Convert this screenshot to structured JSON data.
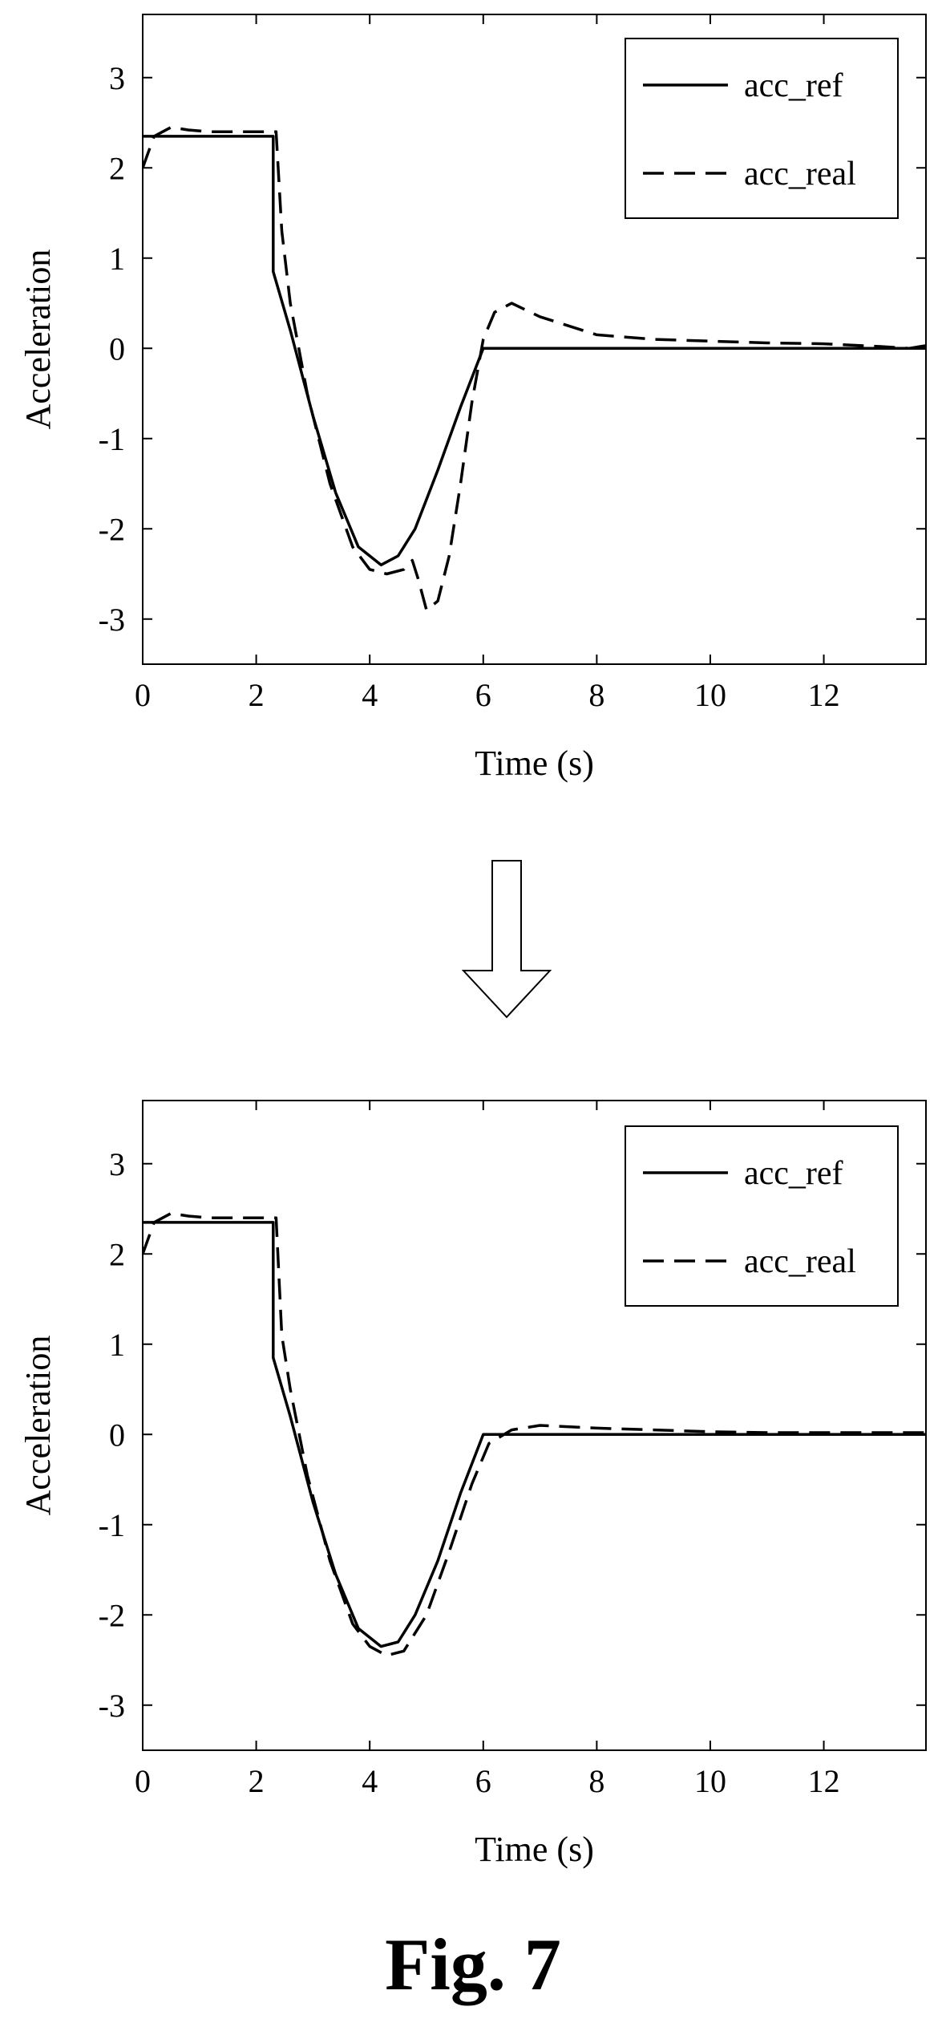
{
  "figure": {
    "caption": "Fig. 7",
    "arrow_direction": "down"
  },
  "chart_data": [
    {
      "type": "line",
      "title": "",
      "xlabel": "Time (s)",
      "ylabel": "Acceleration",
      "xlim": [
        0,
        13.8
      ],
      "ylim": [
        -3.5,
        3.7
      ],
      "xticks": [
        0,
        2,
        4,
        6,
        8,
        10,
        12
      ],
      "yticks": [
        3,
        2,
        1,
        0,
        -1,
        -2,
        -3
      ],
      "grid": false,
      "legend": "top-right",
      "series": [
        {
          "name": "acc_ref",
          "style": "solid",
          "x": [
            0,
            2.3,
            2.3,
            2.6,
            3.0,
            3.4,
            3.8,
            4.2,
            4.5,
            4.8,
            5.2,
            5.6,
            6.0,
            13.8
          ],
          "y": [
            2.35,
            2.35,
            0.85,
            0.2,
            -0.75,
            -1.6,
            -2.2,
            -2.4,
            -2.3,
            -2.0,
            -1.35,
            -0.65,
            0.0,
            0.0
          ]
        },
        {
          "name": "acc_real",
          "style": "dashed",
          "x": [
            0,
            0.2,
            0.5,
            0.8,
            1.2,
            2.35,
            2.45,
            2.6,
            2.9,
            3.3,
            3.7,
            4.0,
            4.3,
            4.6,
            4.75,
            4.85,
            5.0,
            5.2,
            5.4,
            5.6,
            5.8,
            6.0,
            6.2,
            6.5,
            7.0,
            8.0,
            9.0,
            10.0,
            11.0,
            12.0,
            13.0,
            13.5,
            13.8
          ],
          "y": [
            2.0,
            2.35,
            2.45,
            2.42,
            2.4,
            2.4,
            1.3,
            0.5,
            -0.5,
            -1.5,
            -2.2,
            -2.45,
            -2.5,
            -2.45,
            -2.35,
            -2.55,
            -2.9,
            -2.8,
            -2.3,
            -1.5,
            -0.6,
            0.1,
            0.4,
            0.5,
            0.35,
            0.15,
            0.1,
            0.08,
            0.06,
            0.05,
            0.02,
            0.0,
            0.03
          ]
        }
      ]
    },
    {
      "type": "line",
      "title": "",
      "xlabel": "Time (s)",
      "ylabel": "Acceleration",
      "xlim": [
        0,
        13.8
      ],
      "ylim": [
        -3.5,
        3.7
      ],
      "xticks": [
        0,
        2,
        4,
        6,
        8,
        10,
        12
      ],
      "yticks": [
        3,
        2,
        1,
        0,
        -1,
        -2,
        -3
      ],
      "grid": false,
      "legend": "top-right",
      "series": [
        {
          "name": "acc_ref",
          "style": "solid",
          "x": [
            0,
            2.3,
            2.3,
            2.6,
            3.0,
            3.4,
            3.8,
            4.2,
            4.5,
            4.8,
            5.2,
            5.6,
            6.0,
            13.8
          ],
          "y": [
            2.35,
            2.35,
            0.85,
            0.2,
            -0.75,
            -1.55,
            -2.15,
            -2.35,
            -2.3,
            -2.0,
            -1.4,
            -0.65,
            0.0,
            0.0
          ]
        },
        {
          "name": "acc_real",
          "style": "dashed",
          "x": [
            0,
            0.2,
            0.5,
            0.8,
            1.2,
            2.35,
            2.45,
            2.6,
            2.9,
            3.3,
            3.7,
            4.0,
            4.3,
            4.6,
            5.0,
            5.4,
            5.8,
            6.1,
            6.5,
            7.0,
            8.0,
            9.0,
            10.0,
            11.0,
            12.0,
            13.0,
            13.8
          ],
          "y": [
            2.0,
            2.35,
            2.45,
            2.42,
            2.4,
            2.4,
            1.1,
            0.5,
            -0.45,
            -1.4,
            -2.1,
            -2.35,
            -2.45,
            -2.4,
            -2.0,
            -1.3,
            -0.55,
            -0.1,
            0.05,
            0.1,
            0.07,
            0.05,
            0.03,
            0.02,
            0.02,
            0.02,
            0.02
          ]
        }
      ]
    }
  ]
}
